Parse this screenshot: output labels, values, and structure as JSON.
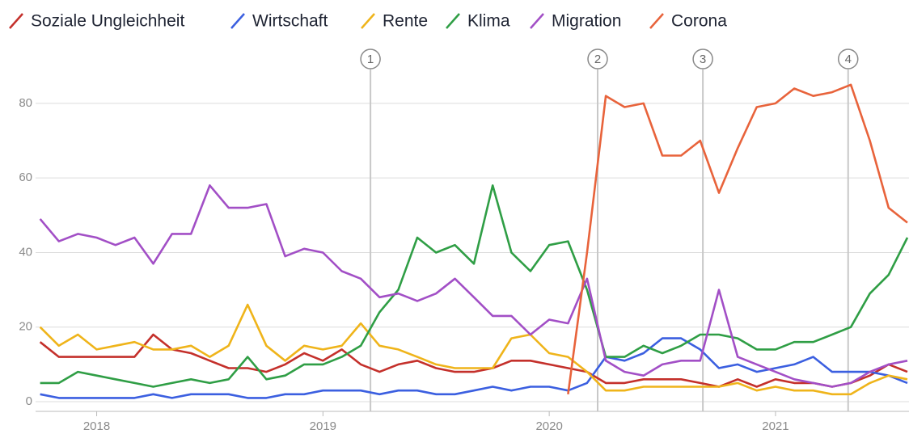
{
  "chart_data": {
    "type": "line",
    "x": [
      2017.75,
      2017.833,
      2017.917,
      2018,
      2018.083,
      2018.167,
      2018.25,
      2018.333,
      2018.417,
      2018.5,
      2018.583,
      2018.667,
      2018.75,
      2018.833,
      2018.917,
      2019,
      2019.083,
      2019.167,
      2019.25,
      2019.333,
      2019.417,
      2019.5,
      2019.583,
      2019.667,
      2019.75,
      2019.833,
      2019.917,
      2020,
      2020.083,
      2020.167,
      2020.25,
      2020.333,
      2020.417,
      2020.5,
      2020.583,
      2020.667,
      2020.75,
      2020.833,
      2020.917,
      2021,
      2021.083,
      2021.167,
      2021.25,
      2021.333,
      2021.417,
      2021.5,
      2021.583
    ],
    "series": [
      {
        "name": "Soziale Ungleichheit",
        "color": "#c4302b",
        "values": [
          16,
          12,
          12,
          12,
          12,
          12,
          18,
          14,
          13,
          11,
          9,
          9,
          8,
          10,
          13,
          11,
          14,
          10,
          8,
          10,
          11,
          9,
          8,
          8,
          9,
          11,
          11,
          10,
          9,
          8,
          5,
          5,
          6,
          6,
          6,
          5,
          4,
          6,
          4,
          6,
          5,
          5,
          4,
          5,
          7,
          10,
          8
        ]
      },
      {
        "name": "Wirtschaft",
        "color": "#3b5fe0",
        "values": [
          2,
          1,
          1,
          1,
          1,
          1,
          2,
          1,
          2,
          2,
          2,
          1,
          1,
          2,
          2,
          3,
          3,
          3,
          2,
          3,
          3,
          2,
          2,
          3,
          4,
          3,
          4,
          4,
          3,
          5,
          12,
          11,
          13,
          17,
          17,
          14,
          9,
          10,
          8,
          9,
          10,
          12,
          8,
          8,
          8,
          7,
          5
        ]
      },
      {
        "name": "Rente",
        "color": "#efb41a",
        "values": [
          20,
          15,
          18,
          14,
          15,
          16,
          14,
          14,
          15,
          12,
          15,
          26,
          15,
          11,
          15,
          14,
          15,
          21,
          15,
          14,
          12,
          10,
          9,
          9,
          9,
          17,
          18,
          13,
          12,
          8,
          3,
          3,
          4,
          4,
          4,
          4,
          4,
          5,
          3,
          4,
          3,
          3,
          2,
          2,
          5,
          7,
          6
        ]
      },
      {
        "name": "Klima",
        "color": "#2f9e45",
        "values": [
          5,
          5,
          8,
          7,
          6,
          5,
          4,
          5,
          6,
          5,
          6,
          12,
          6,
          7,
          10,
          10,
          12,
          15,
          24,
          30,
          44,
          40,
          42,
          37,
          58,
          40,
          35,
          42,
          43,
          30,
          12,
          12,
          15,
          13,
          15,
          18,
          18,
          17,
          14,
          14,
          16,
          16,
          18,
          20,
          29,
          34,
          44
        ]
      },
      {
        "name": "Migration",
        "color": "#a24fc6",
        "values": [
          49,
          43,
          45,
          44,
          42,
          44,
          37,
          45,
          45,
          58,
          52,
          52,
          53,
          39,
          41,
          40,
          35,
          33,
          28,
          29,
          27,
          29,
          33,
          28,
          23,
          23,
          18,
          22,
          21,
          33,
          11,
          8,
          7,
          10,
          11,
          11,
          30,
          12,
          10,
          8,
          6,
          5,
          4,
          5,
          8,
          10,
          11
        ]
      },
      {
        "name": "Corona",
        "color": "#e8633b",
        "values": [
          null,
          null,
          null,
          null,
          null,
          null,
          null,
          null,
          null,
          null,
          null,
          null,
          null,
          null,
          null,
          null,
          null,
          null,
          null,
          null,
          null,
          null,
          null,
          null,
          null,
          null,
          null,
          null,
          2,
          40,
          82,
          79,
          80,
          66,
          66,
          70,
          56,
          68,
          79,
          80,
          84,
          82,
          83,
          85,
          70,
          52,
          48
        ]
      }
    ],
    "xlim": [
      2017.73,
      2021.59
    ],
    "xticks": [
      2018,
      2019,
      2020,
      2021
    ],
    "ylim": [
      0,
      88
    ],
    "yticks": [
      0,
      20,
      40,
      60,
      80
    ],
    "grid": true,
    "annotations": [
      {
        "value": 2019.21,
        "label": "1"
      },
      {
        "value": 2020.214,
        "label": "2"
      },
      {
        "value": 2020.679,
        "label": "3"
      },
      {
        "value": 2021.321,
        "label": "4"
      }
    ]
  }
}
